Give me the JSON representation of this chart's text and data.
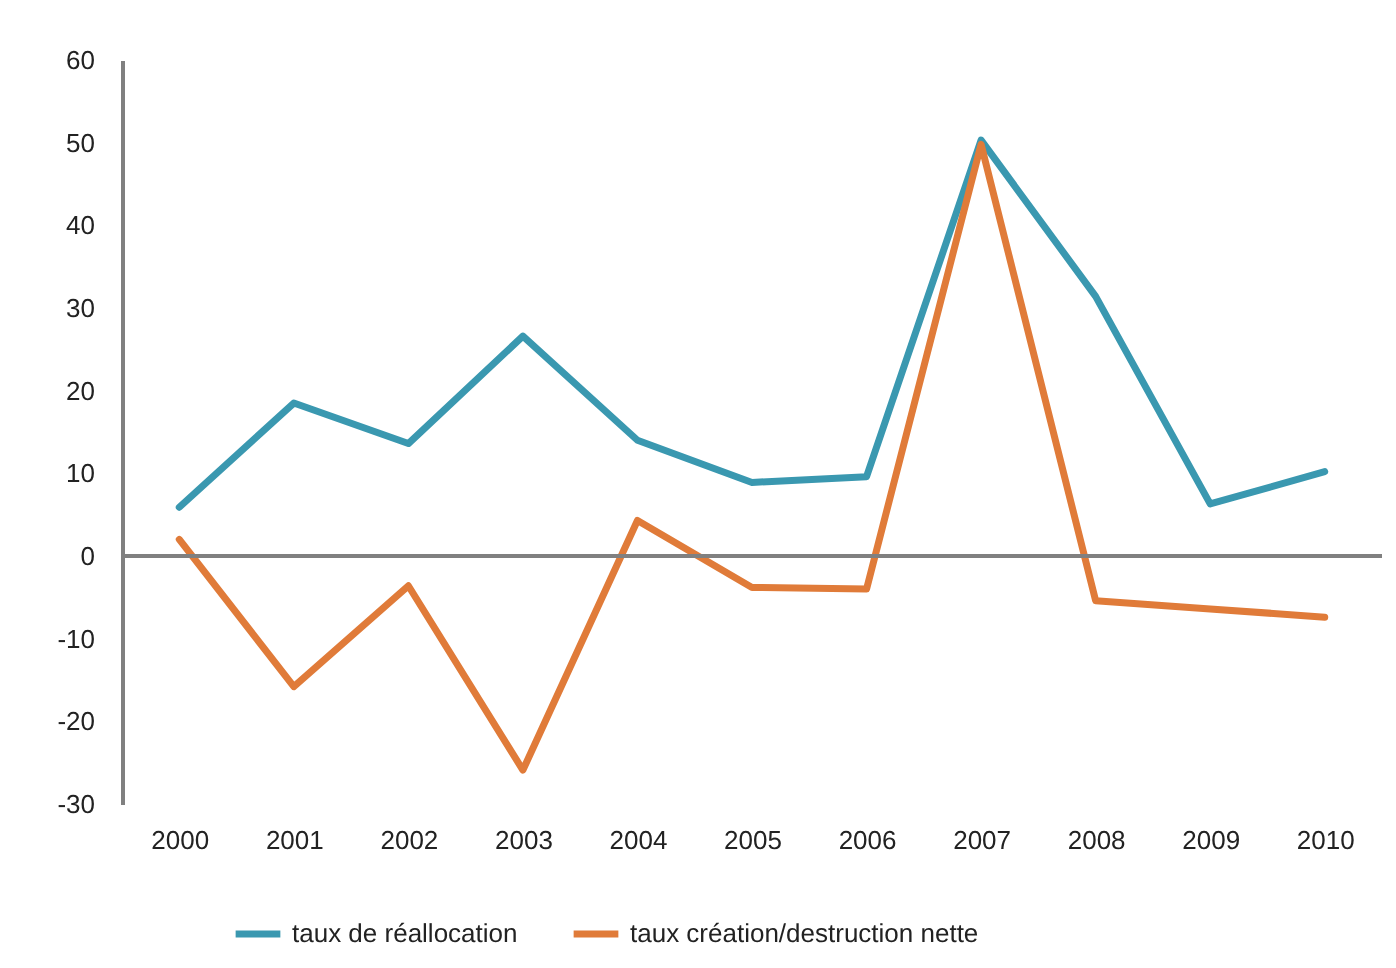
{
  "chart_data": {
    "type": "line",
    "categories": [
      "2000",
      "2001",
      "2002",
      "2003",
      "2004",
      "2005",
      "2006",
      "2007",
      "2008",
      "2009",
      "2010"
    ],
    "series": [
      {
        "name": "taux de réallocation",
        "color": "#3a98b0",
        "values": [
          5.9,
          18.5,
          13.6,
          26.6,
          14.0,
          8.9,
          9.6,
          50.3,
          31.4,
          6.3,
          10.2
        ]
      },
      {
        "name": "taux création/destruction nette",
        "color": "#e07b39",
        "values": [
          2.0,
          -15.8,
          -3.6,
          -25.9,
          4.3,
          -3.8,
          -4.0,
          49.8,
          -5.4,
          -6.4,
          -7.4
        ]
      }
    ],
    "ylim": [
      -30,
      60
    ],
    "yticks": [
      -30,
      -20,
      -10,
      0,
      10,
      20,
      30,
      40,
      50,
      60
    ],
    "ref_lines": [
      {
        "axis": "y",
        "value": 0,
        "color": "#808080"
      }
    ],
    "grid": false,
    "legend": "bottom",
    "marker": "none",
    "line_style": "solid"
  }
}
